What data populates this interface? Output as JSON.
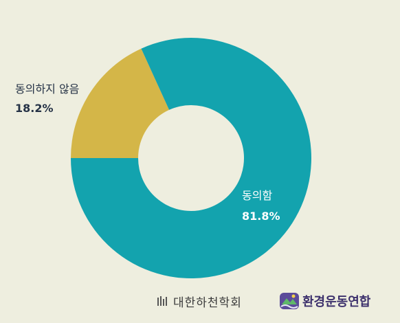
{
  "chart_data": {
    "type": "pie",
    "donut": true,
    "slices": [
      {
        "label": "동의함",
        "value": 81.8,
        "value_label": "81.8%",
        "color": "#13a3ae"
      },
      {
        "label": "동의하지 않음",
        "value": 18.2,
        "value_label": "18.2%",
        "color": "#d4b648"
      }
    ],
    "background": "#eeeedf",
    "legend": "none"
  },
  "footer": {
    "org1_name": "대한하천학회",
    "org2_name": "환경운동연합",
    "org1_icon": "bars-logo-icon",
    "org2_icon": "river-mountain-logo-icon"
  }
}
